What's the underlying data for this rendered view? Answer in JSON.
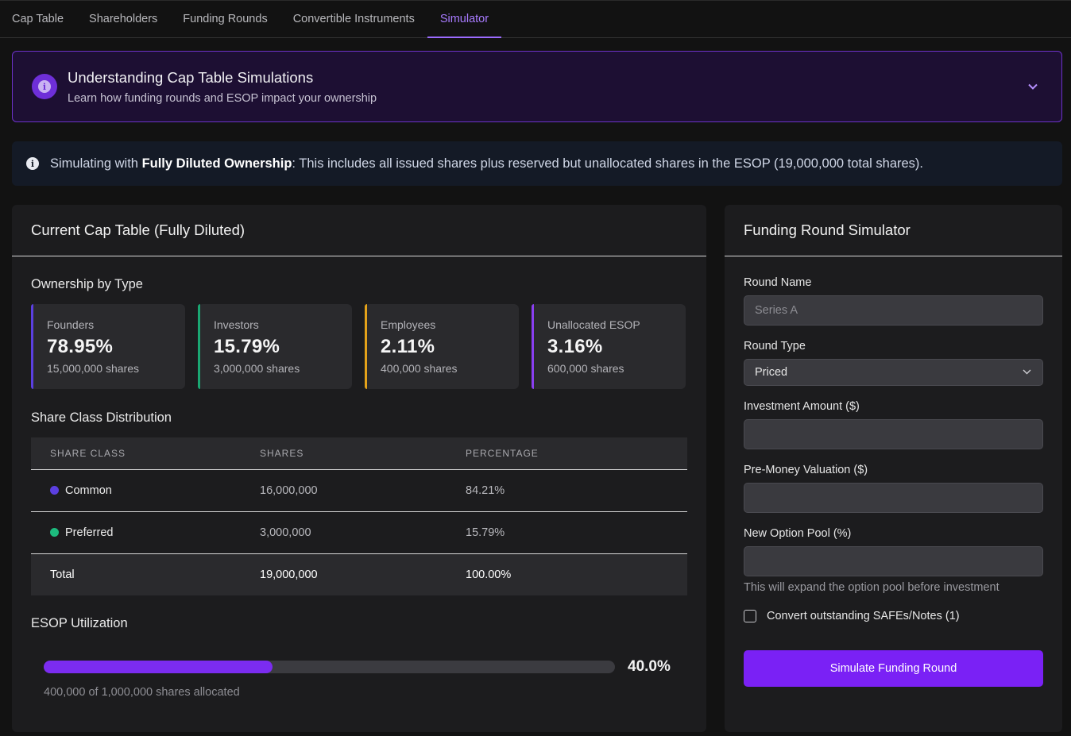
{
  "tabs": [
    {
      "label": "Cap Table"
    },
    {
      "label": "Shareholders"
    },
    {
      "label": "Funding Rounds"
    },
    {
      "label": "Convertible Instruments"
    },
    {
      "label": "Simulator"
    }
  ],
  "active_tab": "Simulator",
  "banner": {
    "title": "Understanding Cap Table Simulations",
    "subtitle": "Learn how funding rounds and ESOP impact your ownership"
  },
  "notice": {
    "prefix": "Simulating with ",
    "bold": "Fully Diluted Ownership",
    "suffix": ": This includes all issued shares plus reserved but unallocated shares in the ESOP (19,000,000 total shares)."
  },
  "cap_table": {
    "title": "Current Cap Table (Fully Diluted)",
    "ownership_title": "Ownership by Type",
    "stats": [
      {
        "label": "Founders",
        "pct": "78.95%",
        "shares": "15,000,000 shares",
        "color": "#5b3fe0"
      },
      {
        "label": "Investors",
        "pct": "15.79%",
        "shares": "3,000,000 shares",
        "color": "#1aa772"
      },
      {
        "label": "Employees",
        "pct": "2.11%",
        "shares": "400,000 shares",
        "color": "#e3a21a"
      },
      {
        "label": "Unallocated ESOP",
        "pct": "3.16%",
        "shares": "600,000 shares",
        "color": "#8a3ff0"
      }
    ],
    "distribution_title": "Share Class Distribution",
    "table": {
      "headers": [
        "SHARE CLASS",
        "SHARES",
        "PERCENTAGE"
      ],
      "rows": [
        {
          "class": "Common",
          "shares": "16,000,000",
          "pct": "84.21%",
          "color": "#5b3fe0"
        },
        {
          "class": "Preferred",
          "shares": "3,000,000",
          "pct": "15.79%",
          "color": "#1dbb7e"
        }
      ],
      "total": {
        "label": "Total",
        "shares": "19,000,000",
        "pct": "100.00%"
      }
    },
    "esop": {
      "title": "ESOP Utilization",
      "value_label": "40.0%",
      "fraction": 0.4,
      "note": "400,000 of 1,000,000 shares allocated"
    }
  },
  "simulator": {
    "title": "Funding Round Simulator",
    "round_name_label": "Round Name",
    "round_name_placeholder": "Series A",
    "round_type_label": "Round Type",
    "round_type_value": "Priced",
    "investment_label": "Investment Amount ($)",
    "investment_value": "",
    "premoney_label": "Pre-Money Valuation ($)",
    "premoney_value": "",
    "pool_label": "New Option Pool (%)",
    "pool_value": "",
    "pool_hint": "This will expand the option pool before investment",
    "convert_label": "Convert outstanding SAFEs/Notes (1)",
    "button_label": "Simulate Funding Round"
  }
}
